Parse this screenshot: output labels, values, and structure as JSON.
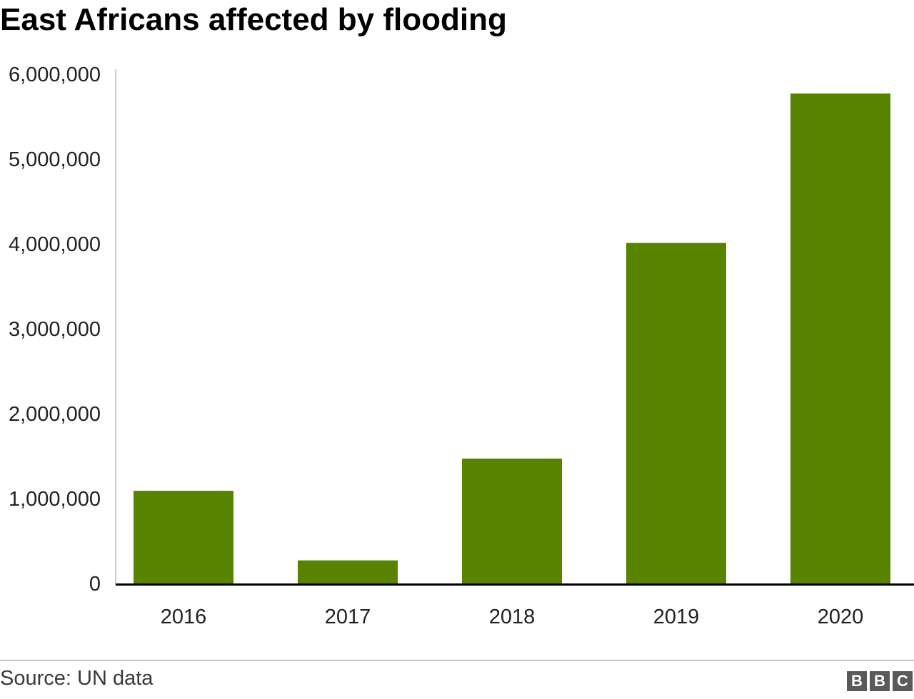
{
  "chart_data": {
    "type": "bar",
    "title": "East Africans affected by flooding",
    "categories": [
      "2016",
      "2017",
      "2018",
      "2019",
      "2020"
    ],
    "values": [
      1100000,
      280000,
      1480000,
      4020000,
      5780000
    ],
    "ylim": [
      0,
      6000000
    ],
    "yticks": [
      0,
      1000000,
      2000000,
      3000000,
      4000000,
      5000000,
      6000000
    ],
    "ytick_labels": [
      "0",
      "1,000,000",
      "2,000,000",
      "3,000,000",
      "4,000,000",
      "5,000,000",
      "6,000,000"
    ],
    "xlabel": "",
    "ylabel": "",
    "grid": false,
    "bar_color": "#588300"
  },
  "footer": {
    "source": "Source: UN data",
    "logo_letters": [
      "B",
      "B",
      "C"
    ]
  }
}
